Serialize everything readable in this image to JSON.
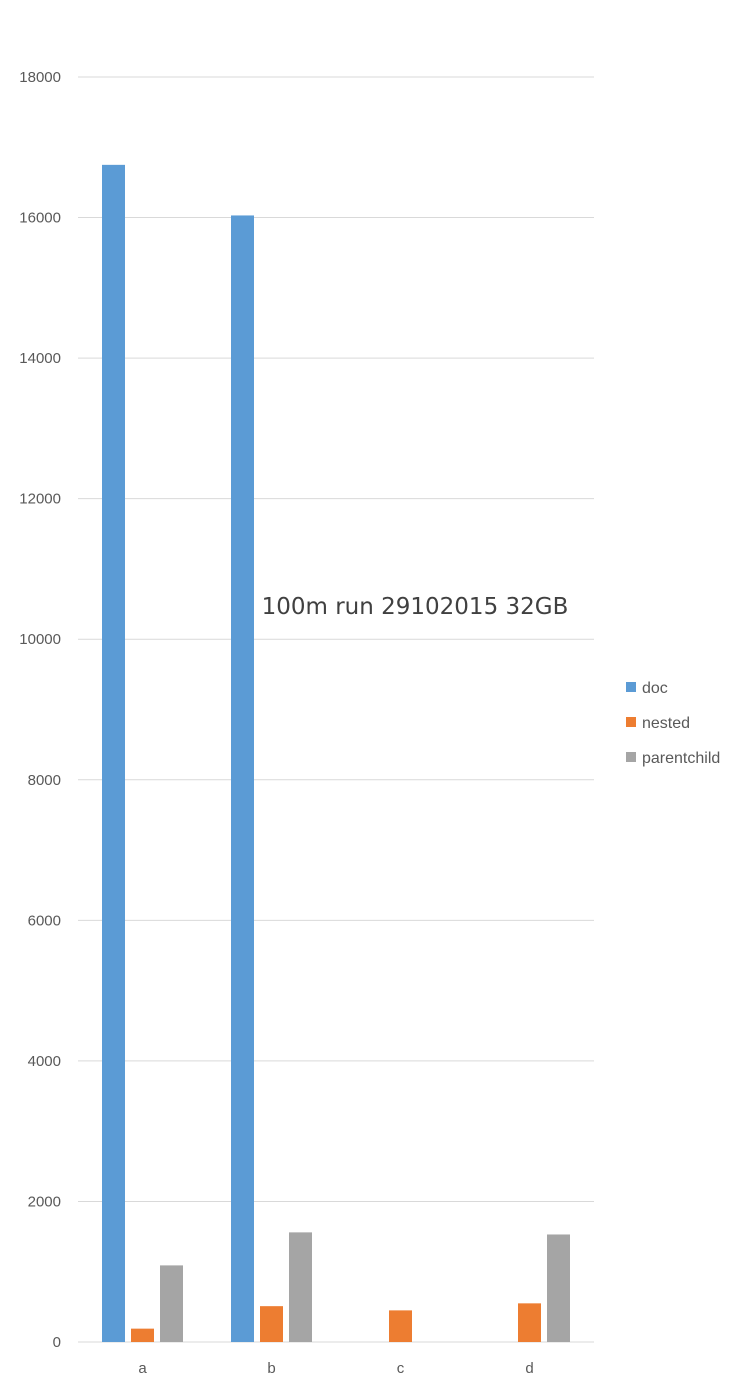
{
  "chart_data": {
    "type": "bar",
    "title": "100m run 29102015 32GB",
    "categories": [
      "a",
      "b",
      "c",
      "d"
    ],
    "series": [
      {
        "name": "doc",
        "color": "#5b9bd5",
        "values": [
          16750,
          16030,
          null,
          null
        ]
      },
      {
        "name": "nested",
        "color": "#ed7d31",
        "values": [
          190,
          510,
          450,
          550
        ]
      },
      {
        "name": "parentchild",
        "color": "#a5a5a5",
        "values": [
          1090,
          1560,
          null,
          1530
        ]
      }
    ],
    "y_ticks": [
      "0",
      "2000",
      "4000",
      "6000",
      "8000",
      "10000",
      "12000",
      "14000",
      "16000",
      "18000"
    ],
    "ylim": [
      0,
      18000
    ],
    "grid": true,
    "legend_position": "right"
  }
}
